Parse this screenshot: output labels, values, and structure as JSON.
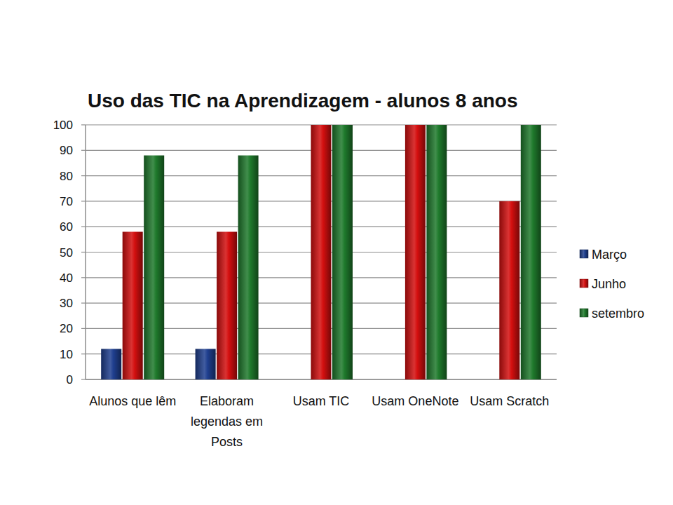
{
  "chart_data": {
    "type": "bar",
    "title": "Uso das TIC na Aprendizagem - alunos 8 anos",
    "categories": [
      "Alunos que lêm",
      "Elaboram legendas em Posts",
      "Usam TIC",
      "Usam OneNote",
      "Usam Scratch"
    ],
    "series": [
      {
        "name": "Março",
        "color": "#1f3f8f",
        "values": [
          12,
          12,
          0,
          0,
          0
        ]
      },
      {
        "name": "Junho",
        "color": "#d40f0f",
        "values": [
          58,
          58,
          100,
          100,
          70
        ]
      },
      {
        "name": "setembro",
        "color": "#1f7a2c",
        "values": [
          88,
          88,
          100,
          100,
          100
        ]
      }
    ],
    "ylim": [
      0,
      100
    ],
    "yticks": [
      0,
      10,
      20,
      30,
      40,
      50,
      60,
      70,
      80,
      90,
      100
    ],
    "grid": true,
    "legend": "right"
  }
}
